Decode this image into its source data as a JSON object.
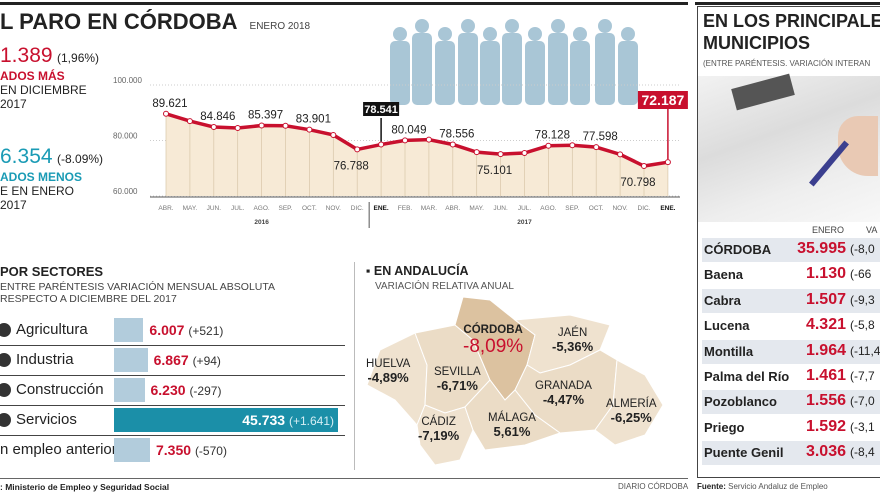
{
  "header": {
    "title": "L PARO EN CÓRDOBA",
    "date": "ENERO 2018"
  },
  "stats": [
    {
      "value": "1.389",
      "pct": "(1,96%)",
      "line1": "ADOS MÁS",
      "line2": "EN DICIEMBRE",
      "line3": "2017",
      "color": "#c8102e"
    },
    {
      "value": "6.354",
      "pct": "(-8.09%)",
      "line1": "ADOS MENOS",
      "line2": "E EN ENERO",
      "line3": "2017",
      "color": "#1a9bb5"
    }
  ],
  "chart_data": {
    "type": "area",
    "ylim": [
      60000,
      100000
    ],
    "yticks": [
      "60.000",
      "80.000",
      "100.000"
    ],
    "categories": [
      "ABR.",
      "MAY.",
      "JUN.",
      "JUL.",
      "AGO.",
      "SEP.",
      "OCT.",
      "NOV.",
      "DIC.",
      "ENE.",
      "FEB.",
      "MAR.",
      "ABR.",
      "MAY.",
      "JUN.",
      "JUL.",
      "AGO.",
      "SEP.",
      "OCT.",
      "NOV.",
      "DIC.",
      "ENE."
    ],
    "years": [
      "2016",
      "2017"
    ],
    "values": [
      89621,
      87000,
      84846,
      84500,
      85397,
      85300,
      83901,
      82000,
      76788,
      78541,
      80049,
      80300,
      78556,
      75800,
      75101,
      75500,
      78128,
      78300,
      77598,
      75000,
      70798,
      72187
    ],
    "labels": [
      {
        "i": 0,
        "t": "89.621"
      },
      {
        "i": 2,
        "t": "84.846"
      },
      {
        "i": 4,
        "t": "85.397"
      },
      {
        "i": 6,
        "t": "83.901"
      },
      {
        "i": 8,
        "t": "76.788",
        "below": true
      },
      {
        "i": 10,
        "t": "80.049"
      },
      {
        "i": 12,
        "t": "78.556"
      },
      {
        "i": 14,
        "t": "75.101",
        "below": true
      },
      {
        "i": 16,
        "t": "78.128"
      },
      {
        "i": 18,
        "t": "77.598"
      },
      {
        "i": 20,
        "t": "70.798",
        "below": true
      }
    ],
    "highlights": [
      {
        "i": 9,
        "t": "78.541",
        "color": "#111111"
      },
      {
        "i": 21,
        "t": "72.187",
        "color": "#c8102e"
      }
    ],
    "line_color": "#c8102e",
    "fill_color": "#f7ead6",
    "grid": true
  },
  "sectors": {
    "title": "POR SECTORES",
    "subtitle1": "ENTRE PARÉNTESIS VARIACIÓN MENSUAL ABSOLUTA",
    "subtitle2": "RESPECTO A DICIEMBRE DEL 2017",
    "items": [
      {
        "name": "Agricultura",
        "value": 6007,
        "value_text": "6.007",
        "change": "(+521)",
        "icon": "tractor-icon"
      },
      {
        "name": "Industria",
        "value": 6867,
        "value_text": "6.867",
        "change": "(+94)",
        "icon": "factory-icon"
      },
      {
        "name": "Construcción",
        "value": 6230,
        "value_text": "6.230",
        "change": "(-297)",
        "icon": "crane-icon"
      },
      {
        "name": "Servicios",
        "value": 45733,
        "value_text": "45.733",
        "change": "(+1.641)",
        "icon": "services-icon",
        "highlight": true
      },
      {
        "name": "n empleo anterior",
        "value": 7350,
        "value_text": "7.350",
        "change": "(-570)",
        "icon": "none"
      }
    ],
    "bar_color": "#b2ccdc",
    "highlight_color": "#1b8fa8",
    "source": ": Ministerio de Empleo y Seguridad Social"
  },
  "andalucia": {
    "title": "EN ANDALUCÍA",
    "subtitle": "VARIACIÓN RELATIVA ANUAL",
    "provinces": [
      {
        "name": "HUELVA",
        "value": "-4,89%"
      },
      {
        "name": "SEVILLA",
        "value": "-6,71%"
      },
      {
        "name": "CÓRDOBA",
        "value": "-8,09%"
      },
      {
        "name": "JAÉN",
        "value": "-5,36%"
      },
      {
        "name": "GRANADA",
        "value": "-4,47%"
      },
      {
        "name": "ALMERÍA",
        "value": "-6,25%"
      },
      {
        "name": "CÁDIZ",
        "value": "-7,19%"
      },
      {
        "name": "MÁLAGA",
        "value": "5,61%"
      }
    ],
    "credit": "DIARIO CÓRDOBA"
  },
  "municipios": {
    "title1": "EN LOS PRINCIPALE",
    "title2": "MUNICIPIOS",
    "subtitle": "(ENTRE PARÉNTESIS. VARIACIÓN INTERAN",
    "col_enero": "ENERO",
    "col_var": "VA",
    "rows": [
      {
        "name": "CÓRDOBA",
        "value": "35.995",
        "var": "(-8,0"
      },
      {
        "name": "Baena",
        "value": "1.130",
        "var": "(-66"
      },
      {
        "name": "Cabra",
        "value": "1.507",
        "var": "(-9,3"
      },
      {
        "name": "Lucena",
        "value": "4.321",
        "var": "(-5,8"
      },
      {
        "name": "Montilla",
        "value": "1.964",
        "var": "(-11,4"
      },
      {
        "name": "Palma del Río",
        "value": "1.461",
        "var": "(-7,7"
      },
      {
        "name": "Pozoblanco",
        "value": "1.556",
        "var": "(-7,0"
      },
      {
        "name": "Priego",
        "value": "1.592",
        "var": "(-3,1"
      },
      {
        "name": "Puente Genil",
        "value": "3.036",
        "var": "(-8,4"
      }
    ],
    "source_label": "Fuente:",
    "source": "Servicio Andaluz de Empleo"
  }
}
